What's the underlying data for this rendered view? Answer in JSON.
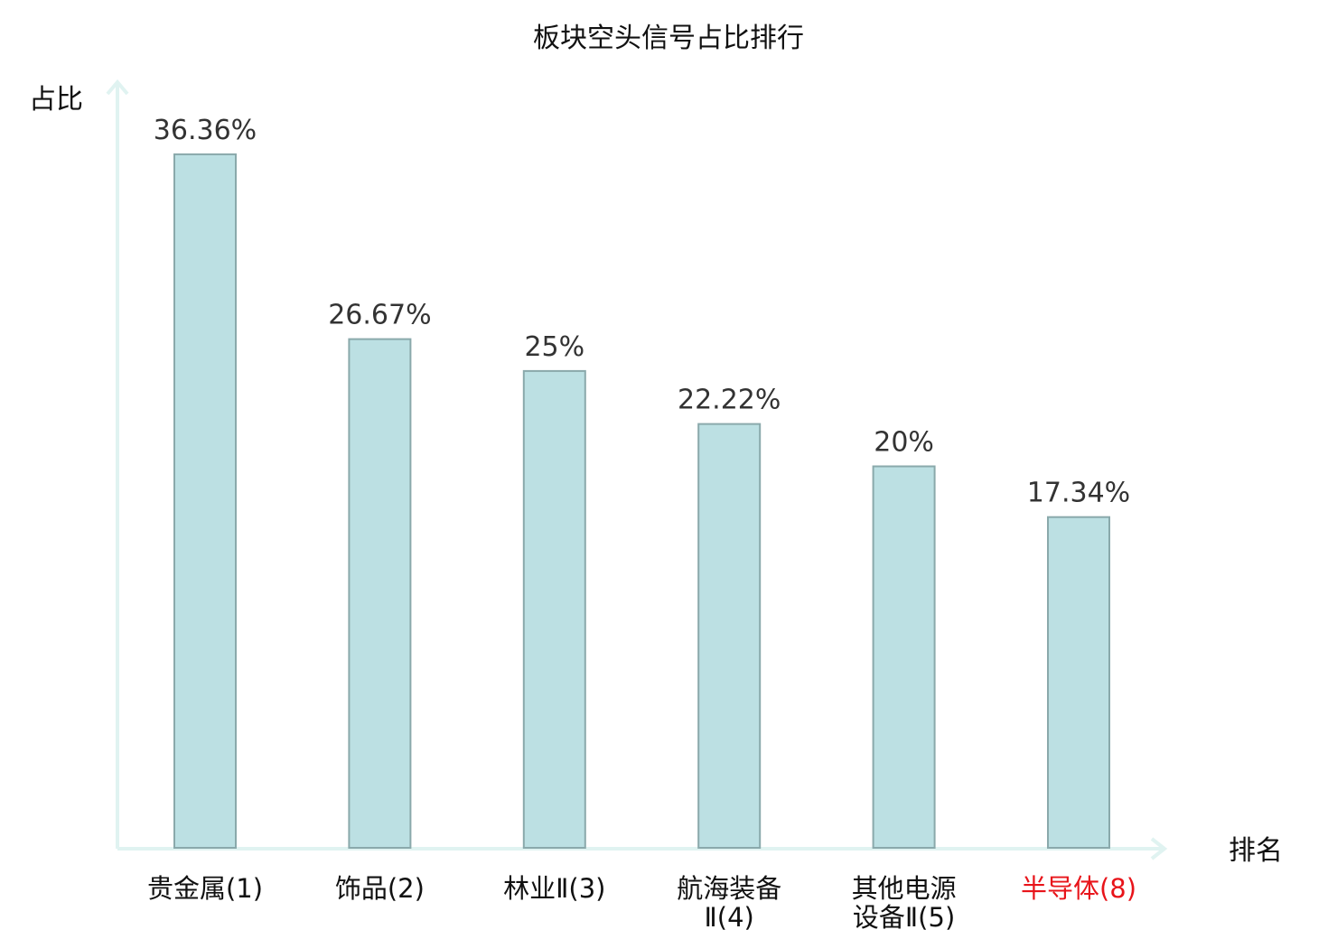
{
  "chart_data": {
    "type": "bar",
    "title": "板块空头信号占比排行",
    "xlabel": "排名",
    "ylabel": "占比",
    "ylim": [
      0,
      40
    ],
    "grid": false,
    "legend": "none",
    "categories": [
      [
        "贵金属(1)"
      ],
      [
        "饰品(2)"
      ],
      [
        "林业Ⅱ(3)"
      ],
      [
        "航海装备",
        "Ⅱ(4)"
      ],
      [
        "其他电源",
        "设备Ⅱ(5)"
      ],
      [
        "半导体(8)"
      ]
    ],
    "values": [
      36.36,
      26.67,
      25,
      22.22,
      20,
      17.34
    ],
    "value_labels": [
      "36.36%",
      "26.67%",
      "25%",
      "22.22%",
      "20%",
      "17.34%"
    ],
    "highlight_index": 5,
    "colors": {
      "bar_fill": "#bce0e3",
      "bar_stroke": "#8aa9ab",
      "axis": "#e0f3f1",
      "label": "#111111",
      "highlight_label": "#e8141a"
    }
  }
}
